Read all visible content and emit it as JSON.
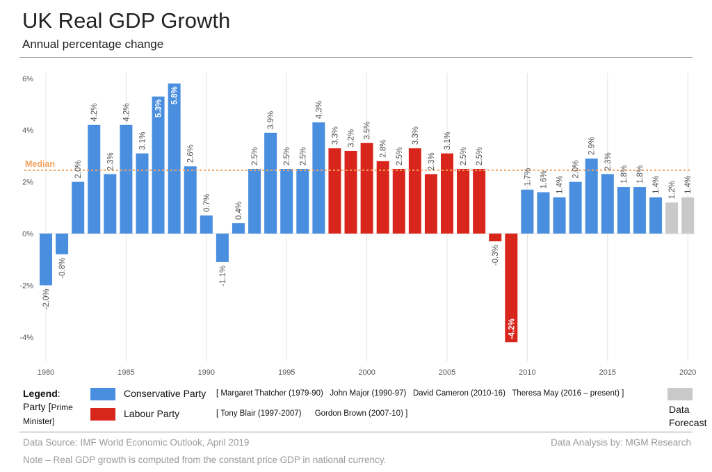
{
  "header": {
    "title": "UK Real GDP Growth",
    "subtitle": "Annual percentage change"
  },
  "chart_data": {
    "type": "bar",
    "x": [
      1980,
      1981,
      1982,
      1983,
      1984,
      1985,
      1986,
      1987,
      1988,
      1989,
      1990,
      1991,
      1992,
      1993,
      1994,
      1995,
      1996,
      1997,
      1998,
      1999,
      2000,
      2001,
      2002,
      2003,
      2004,
      2005,
      2006,
      2007,
      2008,
      2009,
      2010,
      2011,
      2012,
      2013,
      2014,
      2015,
      2016,
      2017,
      2018,
      2019,
      2020
    ],
    "values": [
      -2.0,
      -0.8,
      2.0,
      4.2,
      2.3,
      4.2,
      3.1,
      5.3,
      5.8,
      2.6,
      0.7,
      -1.1,
      0.4,
      2.5,
      3.9,
      2.5,
      2.5,
      4.3,
      3.3,
      3.2,
      3.5,
      2.8,
      2.5,
      3.3,
      2.3,
      3.1,
      2.5,
      2.5,
      -0.3,
      -4.2,
      1.7,
      1.6,
      1.4,
      2.0,
      2.9,
      2.3,
      1.8,
      1.8,
      1.4,
      1.2,
      1.4
    ],
    "data_labels": [
      "-2.0%",
      "-0.8%",
      "2.0%",
      "4.2%",
      "2.3%",
      "4.2%",
      "3.1%",
      "5.3%",
      "5.8%",
      "2.6%",
      "0.7%",
      "-1.1%",
      "0.4%",
      "2.5%",
      "3.9%",
      "2.5%",
      "2.5%",
      "4.3%",
      "3.3%",
      "3.2%",
      "3.5%",
      "2.8%",
      "2.5%",
      "3.3%",
      "2.3%",
      "3.1%",
      "2.5%",
      "2.5%",
      "-0.3%",
      "-4.2%",
      "1.7%",
      "1.6%",
      "1.4%",
      "2.0%",
      "2.9%",
      "2.3%",
      "1.8%",
      "1.8%",
      "1.4%",
      "1.2%",
      "1.4%"
    ],
    "party": [
      "C",
      "C",
      "C",
      "C",
      "C",
      "C",
      "C",
      "C",
      "C",
      "C",
      "C",
      "C",
      "C",
      "C",
      "C",
      "C",
      "C",
      "C",
      "L",
      "L",
      "L",
      "L",
      "L",
      "L",
      "L",
      "L",
      "L",
      "L",
      "L",
      "L",
      "C",
      "C",
      "C",
      "C",
      "C",
      "C",
      "C",
      "C",
      "C",
      "F",
      "F"
    ],
    "colors": {
      "C": "#4a8fdf",
      "L": "#d9261c",
      "F": "#c9c9c9",
      "median": "#f4a460"
    },
    "ylim": [
      -5,
      6
    ],
    "yticks": [
      -4,
      -2,
      0,
      2,
      4,
      6
    ],
    "ytick_labels": [
      "-4%",
      "-2%",
      "0%",
      "2%",
      "4%",
      "6%"
    ],
    "xticks": [
      1980,
      1985,
      1990,
      1995,
      2000,
      2005,
      2010,
      2015,
      2020
    ],
    "xtick_labels": [
      "1980",
      "1985",
      "1990",
      "1995",
      "2000",
      "2005",
      "2010",
      "2015",
      "2020"
    ],
    "median_value": 2.45,
    "median_label": "Median",
    "grid": "vertical"
  },
  "legend": {
    "title": "Legend",
    "colon": ":",
    "party_text": "Party [",
    "prime_text": "Prime",
    "minister_text": "Minister]",
    "conservative_label": "Conservative Party",
    "conservative_pms": "[ Margaret Thatcher (1979-90)   John Major (1990-97)   David Cameron (2010-16)   Theresa May (2016 – present) ]",
    "labour_label": "Labour Party",
    "labour_pms": "[ Tony Blair (1997-2007)      Gordon Brown (2007-10) ]",
    "forecast_line1": "Data",
    "forecast_line2": "Forecast"
  },
  "footer": {
    "source": "Data Source: IMF World Economic Outlook, April 2019",
    "analysis": "Data Analysis by: MGM Research",
    "note": "Note – Real GDP growth is computed from the constant price GDP in national currency."
  }
}
